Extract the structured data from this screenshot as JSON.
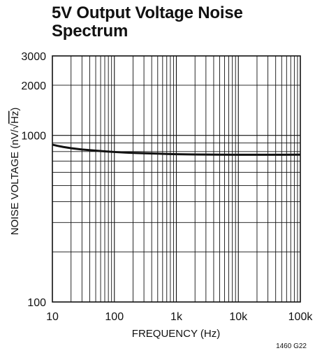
{
  "chart_data": {
    "type": "line",
    "title_lines": [
      "5V Output Voltage Noise",
      "Spectrum"
    ],
    "xlabel": "FREQUENCY (Hz)",
    "ylabel_main": "NOISE VOLTAGE (nV/",
    "ylabel_radical": "√",
    "ylabel_radicand": "Hz",
    "ylabel_close": ")",
    "xscale": "log",
    "yscale": "log",
    "xlim": [
      10,
      100000
    ],
    "ylim": [
      100,
      3000
    ],
    "grid": true,
    "x_ticks": [
      {
        "value": 10,
        "label": "10"
      },
      {
        "value": 100,
        "label": "100"
      },
      {
        "value": 1000,
        "label": "1k"
      },
      {
        "value": 10000,
        "label": "10k"
      },
      {
        "value": 100000,
        "label": "100k"
      }
    ],
    "y_ticks": [
      {
        "value": 100,
        "label": "100"
      },
      {
        "value": 1000,
        "label": "1000"
      },
      {
        "value": 2000,
        "label": "2000"
      },
      {
        "value": 3000,
        "label": "3000"
      }
    ],
    "series": [
      {
        "x": [
          10,
          12,
          15,
          20,
          30,
          50,
          70,
          100,
          150,
          200,
          300,
          500,
          700,
          1000,
          2000,
          5000,
          10000,
          20000,
          50000,
          100000
        ],
        "y": [
          880,
          866,
          852,
          838,
          823,
          810,
          802,
          795,
          789,
          785,
          781,
          777,
          774,
          771,
          768,
          766,
          765,
          765,
          765,
          766
        ]
      }
    ],
    "figure_code": "1460 G22"
  }
}
